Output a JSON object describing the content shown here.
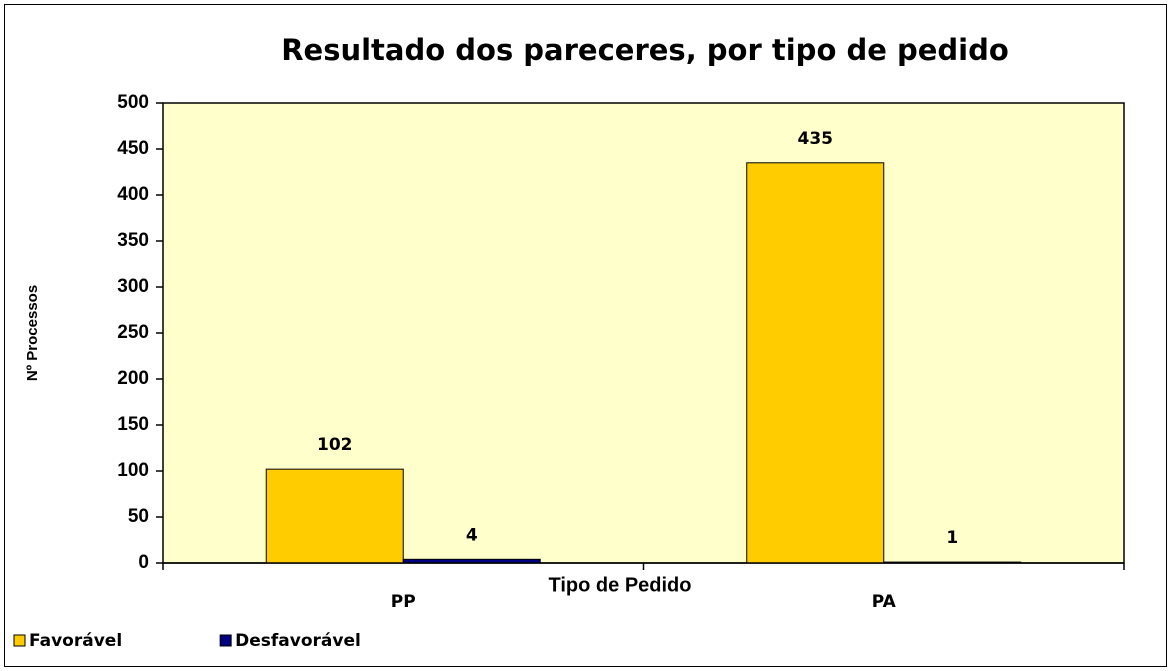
{
  "chart_data": {
    "type": "bar",
    "title": "Resultado dos  pareceres, por tipo de pedido",
    "x_label": "Tipo de Pedido",
    "y_label": "Nº Processos",
    "categories": [
      "PP",
      "PA"
    ],
    "series": [
      {
        "name": "Favorável",
        "color": "#FFCC00",
        "values": [
          102,
          435
        ]
      },
      {
        "name": "Desfavorável",
        "color": "#000080",
        "values": [
          4,
          1
        ]
      }
    ],
    "ylim": [
      0,
      500
    ],
    "yticks": [
      0,
      50,
      100,
      150,
      200,
      250,
      300,
      350,
      400,
      450,
      500
    ],
    "plot_background": "#FFFFCC",
    "legend": "bottom-left"
  }
}
